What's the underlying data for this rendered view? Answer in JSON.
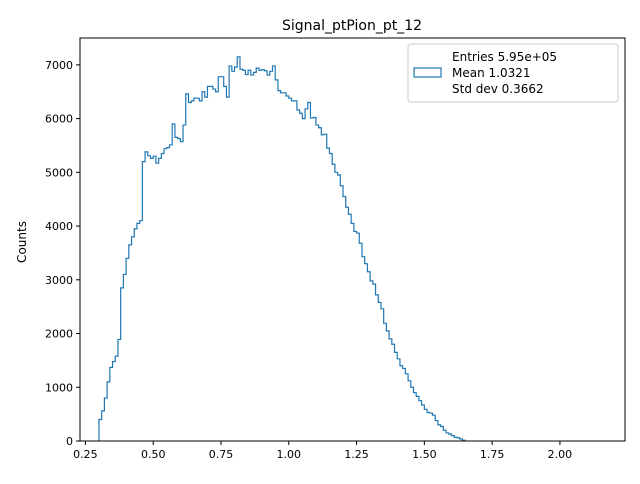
{
  "chart_data": {
    "type": "histogram-step",
    "title": "Signal_ptPion_pt_12",
    "xlabel": "",
    "ylabel": "Counts",
    "xlim": [
      0.23,
      2.24
    ],
    "ylim": [
      0,
      7500
    ],
    "xticks": [
      0.25,
      0.5,
      0.75,
      1.0,
      1.25,
      1.5,
      1.75,
      2.0
    ],
    "xtick_labels": [
      "0.25",
      "0.50",
      "0.75",
      "1.00",
      "1.25",
      "1.50",
      "1.75",
      "2.00"
    ],
    "yticks": [
      0,
      1000,
      2000,
      3000,
      4000,
      5000,
      6000,
      7000
    ],
    "ytick_labels": [
      "0",
      "1000",
      "2000",
      "3000",
      "4000",
      "5000",
      "6000",
      "7000"
    ],
    "grid": false,
    "legend_position": "top-right",
    "legend": {
      "entries": [
        "Entries 5.95e+05",
        "Mean 1.0321",
        "Std dev 0.3662"
      ],
      "series_color": "#1f77b4"
    },
    "bin_width": 0.01,
    "x_start": 0.3,
    "series": [
      {
        "values": [
          400,
          560,
          800,
          1100,
          1370,
          1480,
          1580,
          1890,
          2850,
          3100,
          3400,
          3650,
          3800,
          3950,
          4050,
          4100,
          5200,
          5380,
          5310,
          5260,
          5300,
          5170,
          5260,
          5350,
          5440,
          5460,
          5510,
          5900,
          5650,
          5630,
          5570,
          5880,
          6460,
          6300,
          6330,
          6380,
          6380,
          6330,
          6500,
          6400,
          6600,
          6600,
          6550,
          6500,
          6780,
          6780,
          6600,
          6400,
          6980,
          6880,
          6960,
          7150,
          6920,
          6900,
          6820,
          6900,
          6810,
          6860,
          6940,
          6900,
          6910,
          6890,
          6810,
          6880,
          6980,
          6720,
          6520,
          6480,
          6480,
          6420,
          6380,
          6330,
          6330,
          6160,
          6100,
          6000,
          6180,
          6300,
          6010,
          6020,
          5880,
          5830,
          5700,
          5710,
          5450,
          5350,
          5150,
          5000,
          4950,
          4750,
          4550,
          4350,
          4220,
          4050,
          3900,
          3870,
          3680,
          3430,
          3300,
          3150,
          2980,
          2920,
          2720,
          2580,
          2460,
          2190,
          2050,
          1900,
          1800,
          1650,
          1530,
          1400,
          1350,
          1250,
          1120,
          1000,
          900,
          830,
          750,
          670,
          590,
          530,
          520,
          480,
          380,
          300,
          270,
          200,
          150,
          130,
          100,
          70,
          60,
          40,
          15
        ]
      }
    ]
  }
}
